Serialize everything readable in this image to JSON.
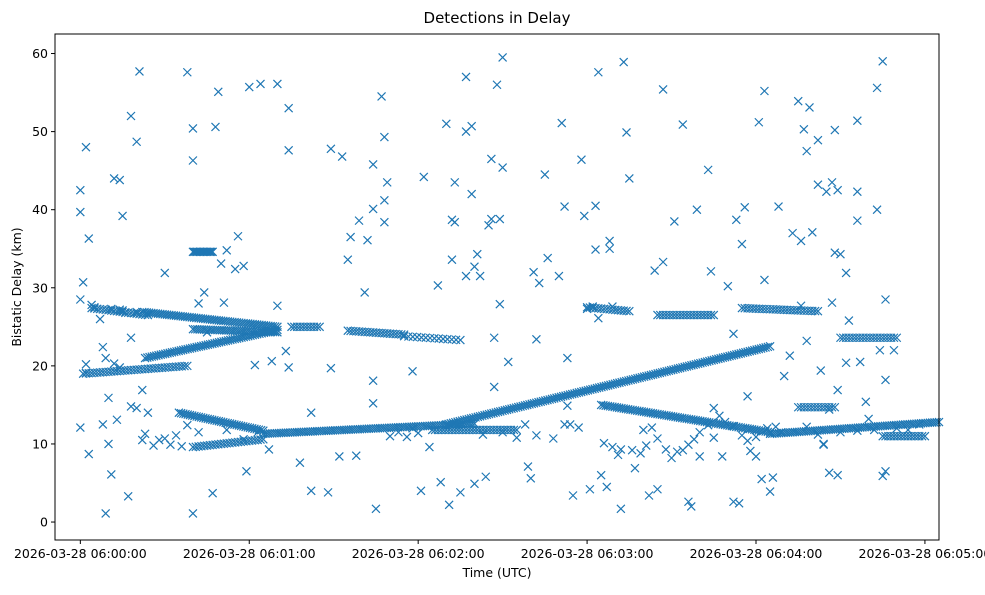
{
  "chart_data": {
    "type": "scatter",
    "title": "Detections in Delay",
    "xlabel": "Time (UTC)",
    "ylabel": "Bistatic Delay (km)",
    "marker": "x",
    "color": "#1f77b4",
    "grid": false,
    "x_unit": "seconds after 2026-03-28 06:00:00 UTC",
    "xlim": [
      -9,
      305
    ],
    "ylim": [
      -2.3,
      62.5
    ],
    "xticks": [
      {
        "value": 0,
        "label": "2026-03-28 06:00:00"
      },
      {
        "value": 60,
        "label": "2026-03-28 06:01:00"
      },
      {
        "value": 120,
        "label": "2026-03-28 06:02:00"
      },
      {
        "value": 180,
        "label": "2026-03-28 06:03:00"
      },
      {
        "value": 240,
        "label": "2026-03-28 06:04:00"
      },
      {
        "value": 300,
        "label": "2026-03-28 06:05:00"
      }
    ],
    "yticks": [
      {
        "value": 0,
        "label": "0"
      },
      {
        "value": 10,
        "label": "10"
      },
      {
        "value": 20,
        "label": "20"
      },
      {
        "value": 30,
        "label": "30"
      },
      {
        "value": 40,
        "label": "40"
      },
      {
        "value": 50,
        "label": "50"
      },
      {
        "value": 60,
        "label": "60"
      }
    ],
    "track_series": [
      {
        "name": "track-a",
        "t_start": 1,
        "t_end": 38,
        "step": 1.0,
        "y_start": 19.0,
        "y_end": 20.0
      },
      {
        "name": "track-b",
        "t_start": 4,
        "t_end": 24,
        "step": 1.0,
        "y_start": 27.4,
        "y_end": 26.5
      },
      {
        "name": "track-c",
        "t_start": 22,
        "t_end": 70,
        "step": 0.8,
        "y_start": 26.9,
        "y_end": 25.0
      },
      {
        "name": "track-d",
        "t_start": 23,
        "t_end": 70,
        "step": 0.8,
        "y_start": 21.0,
        "y_end": 24.6
      },
      {
        "name": "track-e",
        "t_start": 40,
        "t_end": 70,
        "step": 0.8,
        "y_start": 24.7,
        "y_end": 24.3
      },
      {
        "name": "track-f",
        "t_start": 35,
        "t_end": 65,
        "step": 0.8,
        "y_start": 14.0,
        "y_end": 11.7
      },
      {
        "name": "track-g",
        "t_start": 40,
        "t_end": 65,
        "step": 1.0,
        "y_start": 9.6,
        "y_end": 10.6
      },
      {
        "name": "track-h",
        "t_start": 75,
        "t_end": 85,
        "step": 1.0,
        "y_start": 25.0,
        "y_end": 25.0
      },
      {
        "name": "track-i",
        "t_start": 65,
        "t_end": 140,
        "step": 0.8,
        "y_start": 11.3,
        "y_end": 12.6
      },
      {
        "name": "track-j",
        "t_start": 95,
        "t_end": 115,
        "step": 1.0,
        "y_start": 24.5,
        "y_end": 24.0
      },
      {
        "name": "track-k",
        "t_start": 115,
        "t_end": 135,
        "step": 1.5,
        "y_start": 23.8,
        "y_end": 23.3
      },
      {
        "name": "track-l",
        "t_start": 125,
        "t_end": 155,
        "step": 1.0,
        "y_start": 11.8,
        "y_end": 11.8
      },
      {
        "name": "track-m",
        "t_start": 130,
        "t_end": 245,
        "step": 0.8,
        "y_start": 12.5,
        "y_end": 22.5
      },
      {
        "name": "track-n",
        "t_start": 180,
        "t_end": 195,
        "step": 1.0,
        "y_start": 27.5,
        "y_end": 27.0
      },
      {
        "name": "track-o",
        "t_start": 185,
        "t_end": 245,
        "step": 0.8,
        "y_start": 15.0,
        "y_end": 11.5
      },
      {
        "name": "track-p",
        "t_start": 205,
        "t_end": 225,
        "step": 1.0,
        "y_start": 26.5,
        "y_end": 26.5
      },
      {
        "name": "track-q",
        "t_start": 235,
        "t_end": 262,
        "step": 1.0,
        "y_start": 27.4,
        "y_end": 27.0
      },
      {
        "name": "track-r",
        "t_start": 245,
        "t_end": 305,
        "step": 0.8,
        "y_start": 11.3,
        "y_end": 12.8
      },
      {
        "name": "track-s",
        "t_start": 255,
        "t_end": 268,
        "step": 1.0,
        "y_start": 14.7,
        "y_end": 14.7
      },
      {
        "name": "track-t",
        "t_start": 270,
        "t_end": 290,
        "step": 1.0,
        "y_start": 23.6,
        "y_end": 23.6
      },
      {
        "name": "track-u",
        "t_start": 285,
        "t_end": 300,
        "step": 1.0,
        "y_start": 11.0,
        "y_end": 11.0
      },
      {
        "name": "track-v",
        "t_start": 40,
        "t_end": 47,
        "step": 0.5,
        "y_start": 34.6,
        "y_end": 34.6
      }
    ],
    "clutter_points": [
      [
        0,
        42.5
      ],
      [
        0,
        39.7
      ],
      [
        0,
        28.5
      ],
      [
        0,
        12.1
      ],
      [
        1,
        30.7
      ],
      [
        2,
        48.0
      ],
      [
        3,
        36.3
      ],
      [
        3,
        8.7
      ],
      [
        4,
        27.8
      ],
      [
        5,
        27.5
      ],
      [
        7,
        26.0
      ],
      [
        8,
        12.5
      ],
      [
        9,
        1.1
      ],
      [
        10,
        15.9
      ],
      [
        10,
        10.0
      ],
      [
        11,
        6.1
      ],
      [
        12,
        44.0
      ],
      [
        13,
        13.1
      ],
      [
        14,
        43.8
      ],
      [
        15,
        39.2
      ],
      [
        17,
        3.3
      ],
      [
        18,
        14.8
      ],
      [
        18,
        52.0
      ],
      [
        20,
        48.7
      ],
      [
        20,
        14.6
      ],
      [
        21,
        57.7
      ],
      [
        22,
        16.9
      ],
      [
        22,
        10.5
      ],
      [
        23,
        11.3
      ],
      [
        30,
        31.9
      ],
      [
        32,
        9.9
      ],
      [
        38,
        57.6
      ],
      [
        40,
        50.4
      ],
      [
        40,
        46.3
      ],
      [
        40,
        1.1
      ],
      [
        42,
        28.0
      ],
      [
        44,
        29.4
      ],
      [
        47,
        3.7
      ],
      [
        48,
        50.6
      ],
      [
        49,
        55.1
      ],
      [
        50,
        33.1
      ],
      [
        51,
        28.1
      ],
      [
        52,
        34.8
      ],
      [
        55,
        32.4
      ],
      [
        56,
        36.6
      ],
      [
        58,
        32.8
      ],
      [
        59,
        6.5
      ],
      [
        60,
        55.7
      ],
      [
        62,
        20.1
      ],
      [
        64,
        56.1
      ],
      [
        67,
        9.3
      ],
      [
        68,
        20.6
      ],
      [
        70,
        56.1
      ],
      [
        70,
        27.7
      ],
      [
        73,
        21.9
      ],
      [
        74,
        19.8
      ],
      [
        74,
        53.0
      ],
      [
        74,
        47.6
      ],
      [
        78,
        7.6
      ],
      [
        82,
        4.0
      ],
      [
        82,
        14.0
      ],
      [
        88,
        3.8
      ],
      [
        89,
        47.8
      ],
      [
        89,
        19.7
      ],
      [
        92,
        8.4
      ],
      [
        93,
        46.8
      ],
      [
        95,
        33.6
      ],
      [
        96,
        36.5
      ],
      [
        98,
        8.5
      ],
      [
        99,
        38.6
      ],
      [
        101,
        29.4
      ],
      [
        102,
        36.1
      ],
      [
        104,
        45.8
      ],
      [
        104,
        40.1
      ],
      [
        104,
        18.1
      ],
      [
        104,
        15.2
      ],
      [
        105,
        1.7
      ],
      [
        107,
        54.5
      ],
      [
        108,
        49.3
      ],
      [
        108,
        41.2
      ],
      [
        108,
        38.4
      ],
      [
        109,
        43.5
      ],
      [
        118,
        19.3
      ],
      [
        121,
        4.0
      ],
      [
        122,
        44.2
      ],
      [
        124,
        9.6
      ],
      [
        127,
        30.3
      ],
      [
        128,
        5.1
      ],
      [
        130,
        51.0
      ],
      [
        131,
        2.2
      ],
      [
        132,
        38.7
      ],
      [
        132,
        33.6
      ],
      [
        133,
        43.5
      ],
      [
        133,
        38.4
      ],
      [
        135,
        3.8
      ],
      [
        137,
        50.0
      ],
      [
        137,
        57.0
      ],
      [
        137,
        31.5
      ],
      [
        139,
        50.7
      ],
      [
        139,
        42.0
      ],
      [
        140,
        32.7
      ],
      [
        140,
        4.9
      ],
      [
        141,
        34.3
      ],
      [
        142,
        31.5
      ],
      [
        143,
        11.2
      ],
      [
        144,
        5.8
      ],
      [
        145,
        38.0
      ],
      [
        146,
        38.8
      ],
      [
        146,
        46.5
      ],
      [
        147,
        17.3
      ],
      [
        147,
        23.6
      ],
      [
        148,
        56.0
      ],
      [
        149,
        27.9
      ],
      [
        149,
        38.8
      ],
      [
        150,
        59.5
      ],
      [
        150,
        45.4
      ],
      [
        152,
        20.5
      ],
      [
        159,
        7.1
      ],
      [
        160,
        5.6
      ],
      [
        161,
        32.0
      ],
      [
        162,
        23.4
      ],
      [
        163,
        30.6
      ],
      [
        165,
        44.5
      ],
      [
        166,
        33.8
      ],
      [
        170,
        31.5
      ],
      [
        171,
        51.1
      ],
      [
        172,
        40.4
      ],
      [
        173,
        14.9
      ],
      [
        173,
        21.0
      ],
      [
        175,
        3.4
      ],
      [
        178,
        46.4
      ],
      [
        179,
        39.2
      ],
      [
        180,
        27.3
      ],
      [
        181,
        4.2
      ],
      [
        182,
        27.6
      ],
      [
        183,
        40.5
      ],
      [
        183,
        34.9
      ],
      [
        184,
        26.1
      ],
      [
        184,
        57.6
      ],
      [
        185,
        6.0
      ],
      [
        187,
        4.5
      ],
      [
        188,
        36.0
      ],
      [
        188,
        35.0
      ],
      [
        189,
        27.6
      ],
      [
        191,
        8.6
      ],
      [
        192,
        1.7
      ],
      [
        193,
        58.9
      ],
      [
        194,
        49.9
      ],
      [
        195,
        44.0
      ],
      [
        197,
        6.9
      ],
      [
        200,
        11.8
      ],
      [
        202,
        3.4
      ],
      [
        204,
        32.2
      ],
      [
        205,
        4.2
      ],
      [
        207,
        33.3
      ],
      [
        207,
        55.4
      ],
      [
        211,
        38.5
      ],
      [
        214,
        50.9
      ],
      [
        216,
        2.6
      ],
      [
        217,
        2.0
      ],
      [
        219,
        40.0
      ],
      [
        220,
        11.5
      ],
      [
        223,
        45.1
      ],
      [
        224,
        32.1
      ],
      [
        225,
        10.8
      ],
      [
        228,
        8.4
      ],
      [
        230,
        30.2
      ],
      [
        232,
        24.1
      ],
      [
        232,
        2.6
      ],
      [
        233,
        38.7
      ],
      [
        234,
        2.4
      ],
      [
        235,
        35.6
      ],
      [
        236,
        40.3
      ],
      [
        237,
        16.1
      ],
      [
        238,
        9.1
      ],
      [
        240,
        8.4
      ],
      [
        241,
        51.2
      ],
      [
        242,
        5.5
      ],
      [
        243,
        55.2
      ],
      [
        243,
        31.0
      ],
      [
        245,
        3.9
      ],
      [
        246,
        5.7
      ],
      [
        248,
        40.4
      ],
      [
        250,
        18.7
      ],
      [
        252,
        21.3
      ],
      [
        253,
        37.0
      ],
      [
        255,
        53.9
      ],
      [
        256,
        36.0
      ],
      [
        256,
        27.7
      ],
      [
        257,
        50.3
      ],
      [
        258,
        23.2
      ],
      [
        258,
        47.5
      ],
      [
        259,
        53.1
      ],
      [
        260,
        37.1
      ],
      [
        262,
        48.9
      ],
      [
        262,
        43.2
      ],
      [
        263,
        19.4
      ],
      [
        264,
        9.9
      ],
      [
        264,
        10.0
      ],
      [
        265,
        42.3
      ],
      [
        266,
        6.3
      ],
      [
        267,
        28.1
      ],
      [
        267,
        43.5
      ],
      [
        268,
        50.2
      ],
      [
        268,
        34.5
      ],
      [
        269,
        6.0
      ],
      [
        269,
        42.5
      ],
      [
        269,
        16.9
      ],
      [
        270,
        34.3
      ],
      [
        272,
        20.4
      ],
      [
        272,
        31.9
      ],
      [
        273,
        25.8
      ],
      [
        276,
        42.3
      ],
      [
        276,
        51.4
      ],
      [
        276,
        38.6
      ],
      [
        277,
        20.5
      ],
      [
        279,
        15.4
      ],
      [
        283,
        55.6
      ],
      [
        283,
        40.0
      ],
      [
        284,
        22.0
      ],
      [
        285,
        5.9
      ],
      [
        285,
        59.0
      ],
      [
        286,
        18.2
      ],
      [
        286,
        28.5
      ],
      [
        286,
        6.5
      ],
      [
        289,
        22.0
      ],
      [
        2,
        20.2
      ],
      [
        2,
        19.1
      ],
      [
        8,
        22.4
      ],
      [
        9,
        21.0
      ],
      [
        12,
        20.3
      ],
      [
        14,
        19.8
      ],
      [
        14,
        27.2
      ],
      [
        16,
        26.8
      ],
      [
        18,
        23.6
      ],
      [
        20,
        26.9
      ],
      [
        11,
        27.3
      ],
      [
        15,
        27.1
      ],
      [
        24,
        14.0
      ],
      [
        26,
        9.8
      ],
      [
        28,
        10.5
      ],
      [
        30,
        10.7
      ],
      [
        34,
        11.1
      ],
      [
        36,
        9.7
      ],
      [
        38,
        12.4
      ],
      [
        42,
        11.5
      ],
      [
        45,
        24.3
      ],
      [
        52,
        11.8
      ],
      [
        58,
        10.6
      ],
      [
        63,
        11.5
      ],
      [
        110,
        11.0
      ],
      [
        113,
        11.5
      ],
      [
        116,
        10.9
      ],
      [
        118,
        12.0
      ],
      [
        120,
        11.4
      ],
      [
        150,
        11.5
      ],
      [
        155,
        10.8
      ],
      [
        158,
        12.5
      ],
      [
        162,
        11.1
      ],
      [
        168,
        10.7
      ],
      [
        172,
        12.5
      ],
      [
        174,
        12.5
      ],
      [
        177,
        12.1
      ],
      [
        186,
        10.1
      ],
      [
        189,
        9.6
      ],
      [
        192,
        9.3
      ],
      [
        196,
        9.2
      ],
      [
        199,
        8.8
      ],
      [
        201,
        9.8
      ],
      [
        203,
        12.1
      ],
      [
        205,
        10.7
      ],
      [
        208,
        9.3
      ],
      [
        210,
        8.2
      ],
      [
        212,
        9.0
      ],
      [
        214,
        9.2
      ],
      [
        216,
        9.9
      ],
      [
        218,
        10.6
      ],
      [
        220,
        8.4
      ],
      [
        223,
        12.4
      ],
      [
        225,
        14.6
      ],
      [
        227,
        13.6
      ],
      [
        229,
        12.8
      ],
      [
        232,
        12.3
      ],
      [
        235,
        11.1
      ],
      [
        237,
        10.4
      ],
      [
        240,
        10.9
      ],
      [
        244,
        12.0
      ],
      [
        247,
        12.2
      ],
      [
        249,
        11.5
      ],
      [
        253,
        11.5
      ],
      [
        258,
        12.2
      ],
      [
        262,
        11.2
      ],
      [
        266,
        14.4
      ],
      [
        270,
        11.5
      ],
      [
        276,
        11.7
      ],
      [
        280,
        13.2
      ],
      [
        282,
        11.8
      ],
      [
        290,
        12.0
      ],
      [
        294,
        11.8
      ],
      [
        298,
        12.5
      ]
    ]
  }
}
